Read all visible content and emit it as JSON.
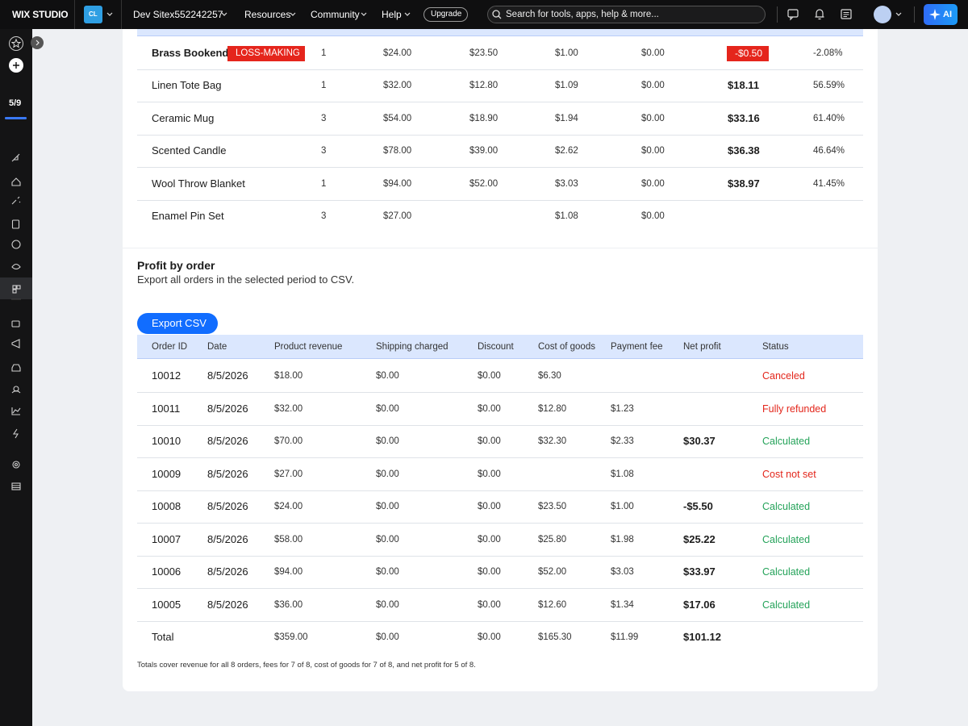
{
  "topbar": {
    "logo": "WIX STUDIO",
    "workspace": "CL",
    "site": "Dev Sitex552242257",
    "menu": [
      "Resources",
      "Community",
      "Help"
    ],
    "upgrade": "Upgrade",
    "search": "Search for tools, apps, help & more...",
    "ai": "AI"
  },
  "sidebar": {
    "progress": "5/9"
  },
  "products": {
    "rows": [
      {
        "name": "Brass Bookends",
        "badge": "LOSS-MAKING",
        "loss": true,
        "cells": [
          "1",
          "$24.00",
          "$23.50",
          "$1.00",
          "$0.00",
          "-$0.50",
          "-2.08%"
        ]
      },
      {
        "name": "Linen Tote Bag",
        "cells": [
          "1",
          "$32.00",
          "$12.80",
          "$1.09",
          "$0.00",
          "$18.11",
          "56.59%"
        ]
      },
      {
        "name": "Ceramic Mug",
        "cells": [
          "3",
          "$54.00",
          "$18.90",
          "$1.94",
          "$0.00",
          "$33.16",
          "61.40%"
        ]
      },
      {
        "name": "Scented Candle",
        "cells": [
          "3",
          "$78.00",
          "$39.00",
          "$2.62",
          "$0.00",
          "$36.38",
          "46.64%"
        ]
      },
      {
        "name": "Wool Throw Blanket",
        "cells": [
          "1",
          "$94.00",
          "$52.00",
          "$3.03",
          "$0.00",
          "$38.97",
          "41.45%"
        ]
      },
      {
        "name": "Enamel Pin Set",
        "cells": [
          "3",
          "$27.00",
          null,
          "$1.08",
          "$0.00",
          null,
          null
        ]
      }
    ]
  },
  "orders": {
    "title": "Profit by order",
    "subtitle": "Export all orders in the selected period to CSV.",
    "button": "Export CSV",
    "columns": [
      "Order ID",
      "Date",
      "Product revenue",
      "Shipping charged",
      "Discount",
      "Cost of goods",
      "Payment fee",
      "Net profit",
      "Status"
    ],
    "rows": [
      {
        "cells": [
          "10012",
          "8/5/2026",
          "$18.00",
          "$0.00",
          "$0.00",
          "$6.30",
          null,
          null,
          "Canceled"
        ],
        "status_color": "#e3261b"
      },
      {
        "cells": [
          "10011",
          "8/5/2026",
          "$32.00",
          "$0.00",
          "$0.00",
          "$12.80",
          "$1.23",
          null,
          "Fully refunded"
        ],
        "status_color": "#e3261b"
      },
      {
        "cells": [
          "10010",
          "8/5/2026",
          "$70.00",
          "$0.00",
          "$0.00",
          "$32.30",
          "$2.33",
          "$30.37",
          "Calculated"
        ],
        "status_color": "#25a35a"
      },
      {
        "cells": [
          "10009",
          "8/5/2026",
          "$27.00",
          "$0.00",
          "$0.00",
          null,
          "$1.08",
          null,
          "Cost not set"
        ],
        "status_color": "#e3261b"
      },
      {
        "cells": [
          "10008",
          "8/5/2026",
          "$24.00",
          "$0.00",
          "$0.00",
          "$23.50",
          "$1.00",
          "-$5.50",
          "Calculated"
        ],
        "status_color": "#25a35a"
      },
      {
        "cells": [
          "10007",
          "8/5/2026",
          "$58.00",
          "$0.00",
          "$0.00",
          "$25.80",
          "$1.98",
          "$25.22",
          "Calculated"
        ],
        "status_color": "#25a35a"
      },
      {
        "cells": [
          "10006",
          "8/5/2026",
          "$94.00",
          "$0.00",
          "$0.00",
          "$52.00",
          "$3.03",
          "$33.97",
          "Calculated"
        ],
        "status_color": "#25a35a"
      },
      {
        "cells": [
          "10005",
          "8/5/2026",
          "$36.00",
          "$0.00",
          "$0.00",
          "$12.60",
          "$1.34",
          "$17.06",
          "Calculated"
        ],
        "status_color": "#25a35a"
      }
    ],
    "total": [
      "Total",
      null,
      "$359.00",
      "$0.00",
      "$0.00",
      "$165.30",
      "$11.99",
      "$101.12",
      null
    ],
    "note": "Totals cover revenue for all 8 orders, fees for 7 of 8, cost of goods for 7 of 8, and net profit for 5 of 8."
  }
}
